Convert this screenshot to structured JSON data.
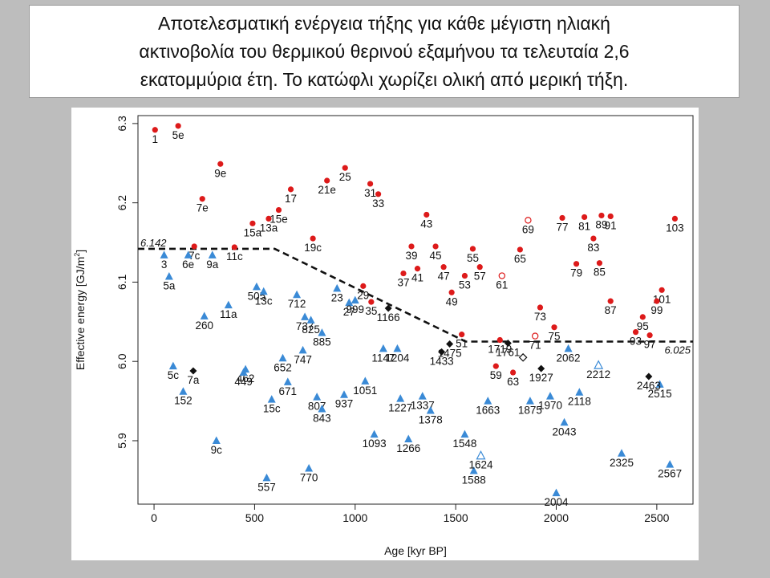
{
  "caption": {
    "lines": [
      "Αποτελεσματική ενέργεια τήξης για κάθε μέγιστη ηλιακή",
      "ακτινοβολία του θερμικού θερινού εξαμήνου τα τελευταία 2,6",
      "εκατομμύρια έτη.  Το κατώφλι χωρίζει ολική από μερική τήξη."
    ]
  },
  "colors": {
    "red": "#dd1a1a",
    "blue": "#3a8ad6",
    "black": "#111111",
    "background": "#bdbdbd",
    "plot_bg": "#ffffff"
  },
  "chart_data": {
    "type": "scatter",
    "xlabel": "Age [kyr BP]",
    "ylabel_main": "Effective energy [GJ/m",
    "ylabel_sup": "2",
    "ylabel_end": "]",
    "xlim": [
      -80,
      2680
    ],
    "ylim": [
      5.82,
      6.31
    ],
    "xticks": [
      0,
      500,
      1000,
      1500,
      2000,
      2500
    ],
    "yticks": [
      5.9,
      6.0,
      6.1,
      6.2,
      6.3
    ],
    "ytick_labels": [
      "5.9",
      "6.0",
      "6.1",
      "6.2",
      "6.3"
    ],
    "grid": false,
    "threshold": {
      "points": [
        [
          -80,
          6.142
        ],
        [
          600,
          6.142
        ],
        [
          1550,
          6.025
        ],
        [
          2680,
          6.025
        ]
      ],
      "label_left": "6.142",
      "label_right": "6.025"
    },
    "series": [
      {
        "marker": "circle-filled-red",
        "points": [
          {
            "x": 5,
            "y": 6.292,
            "label": "1"
          },
          {
            "x": 120,
            "y": 6.297,
            "label": "5e"
          },
          {
            "x": 330,
            "y": 6.249,
            "label": "9e"
          },
          {
            "x": 240,
            "y": 6.205,
            "label": "7e"
          },
          {
            "x": 680,
            "y": 6.217,
            "label": "17"
          },
          {
            "x": 860,
            "y": 6.228,
            "label": "21e"
          },
          {
            "x": 950,
            "y": 6.244,
            "label": "25"
          },
          {
            "x": 1075,
            "y": 6.224,
            "label": "31"
          },
          {
            "x": 1115,
            "y": 6.211,
            "label": "33"
          },
          {
            "x": 620,
            "y": 6.191,
            "label": "15e"
          },
          {
            "x": 570,
            "y": 6.18,
            "label": "13a"
          },
          {
            "x": 490,
            "y": 6.174,
            "label": "15a"
          },
          {
            "x": 790,
            "y": 6.155,
            "label": "19c"
          },
          {
            "x": 200,
            "y": 6.145,
            "label": "7c"
          },
          {
            "x": 400,
            "y": 6.144,
            "label": "11c"
          },
          {
            "x": 1355,
            "y": 6.185,
            "label": "43"
          },
          {
            "x": 1280,
            "y": 6.145,
            "label": "39"
          },
          {
            "x": 1400,
            "y": 6.145,
            "label": "45"
          },
          {
            "x": 1240,
            "y": 6.111,
            "label": "37"
          },
          {
            "x": 1310,
            "y": 6.117,
            "label": "41"
          },
          {
            "x": 1440,
            "y": 6.119,
            "label": "47"
          },
          {
            "x": 1585,
            "y": 6.142,
            "label": "55"
          },
          {
            "x": 1545,
            "y": 6.108,
            "label": "53"
          },
          {
            "x": 1620,
            "y": 6.119,
            "label": "57"
          },
          {
            "x": 1480,
            "y": 6.087,
            "label": "49"
          },
          {
            "x": 1040,
            "y": 6.095,
            "label": "29"
          },
          {
            "x": 1080,
            "y": 6.075,
            "label": "35"
          },
          {
            "x": 1820,
            "y": 6.141,
            "label": "65"
          },
          {
            "x": 2030,
            "y": 6.181,
            "label": "77"
          },
          {
            "x": 2140,
            "y": 6.182,
            "label": "81"
          },
          {
            "x": 2185,
            "y": 6.155,
            "label": "83"
          },
          {
            "x": 2225,
            "y": 6.184,
            "label": "89"
          },
          {
            "x": 2270,
            "y": 6.183,
            "label": "91"
          },
          {
            "x": 2590,
            "y": 6.18,
            "label": "103"
          },
          {
            "x": 2100,
            "y": 6.123,
            "label": "79"
          },
          {
            "x": 2215,
            "y": 6.124,
            "label": "85"
          },
          {
            "x": 2270,
            "y": 6.076,
            "label": "87"
          },
          {
            "x": 2525,
            "y": 6.09,
            "label": "101"
          },
          {
            "x": 2430,
            "y": 6.056,
            "label": "95"
          },
          {
            "x": 2500,
            "y": 6.076,
            "label": "99"
          },
          {
            "x": 2395,
            "y": 6.037,
            "label": "93"
          },
          {
            "x": 2465,
            "y": 6.033,
            "label": "97"
          },
          {
            "x": 1920,
            "y": 6.068,
            "label": "73"
          },
          {
            "x": 1990,
            "y": 6.043,
            "label": "75"
          },
          {
            "x": 1530,
            "y": 6.034,
            "label": "51"
          },
          {
            "x": 1720,
            "y": 6.027,
            "label": "1719"
          },
          {
            "x": 1700,
            "y": 5.994,
            "label": "59"
          },
          {
            "x": 1785,
            "y": 5.986,
            "label": "63"
          }
        ]
      },
      {
        "marker": "circle-open-red",
        "points": [
          {
            "x": 1860,
            "y": 6.178,
            "label": "69"
          },
          {
            "x": 1730,
            "y": 6.108,
            "label": "61"
          },
          {
            "x": 1895,
            "y": 6.032,
            "label": "71"
          }
        ]
      },
      {
        "marker": "triangle-filled-blue",
        "points": [
          {
            "x": 50,
            "y": 6.134,
            "label": "3"
          },
          {
            "x": 170,
            "y": 6.134,
            "label": "6e"
          },
          {
            "x": 290,
            "y": 6.134,
            "label": "9a"
          },
          {
            "x": 75,
            "y": 6.107,
            "label": "5a"
          },
          {
            "x": 370,
            "y": 6.071,
            "label": "11a"
          },
          {
            "x": 250,
            "y": 6.057,
            "label": "260"
          },
          {
            "x": 510,
            "y": 6.094,
            "label": "505"
          },
          {
            "x": 545,
            "y": 6.088,
            "label": "13c"
          },
          {
            "x": 710,
            "y": 6.084,
            "label": "712"
          },
          {
            "x": 750,
            "y": 6.056,
            "label": "737"
          },
          {
            "x": 780,
            "y": 6.052,
            "label": "825"
          },
          {
            "x": 835,
            "y": 6.036,
            "label": "885"
          },
          {
            "x": 910,
            "y": 6.092,
            "label": "23"
          },
          {
            "x": 970,
            "y": 6.074,
            "label": "27"
          },
          {
            "x": 1000,
            "y": 6.077,
            "label": "999"
          },
          {
            "x": 1140,
            "y": 6.016,
            "label": "1147"
          },
          {
            "x": 1210,
            "y": 6.016,
            "label": "1204"
          },
          {
            "x": 740,
            "y": 6.014,
            "label": "747"
          },
          {
            "x": 640,
            "y": 6.004,
            "label": "652"
          },
          {
            "x": 455,
            "y": 5.99,
            "label": "462"
          },
          {
            "x": 445,
            "y": 5.986,
            "label": "449"
          },
          {
            "x": 95,
            "y": 5.994,
            "label": "5c"
          },
          {
            "x": 145,
            "y": 5.962,
            "label": "152"
          },
          {
            "x": 665,
            "y": 5.974,
            "label": "671"
          },
          {
            "x": 585,
            "y": 5.952,
            "label": "15c"
          },
          {
            "x": 810,
            "y": 5.955,
            "label": "807"
          },
          {
            "x": 835,
            "y": 5.94,
            "label": "843"
          },
          {
            "x": 945,
            "y": 5.958,
            "label": "937"
          },
          {
            "x": 1050,
            "y": 5.975,
            "label": "1051"
          },
          {
            "x": 1225,
            "y": 5.953,
            "label": "1227"
          },
          {
            "x": 1335,
            "y": 5.956,
            "label": "1337"
          },
          {
            "x": 1375,
            "y": 5.938,
            "label": "1378"
          },
          {
            "x": 1095,
            "y": 5.908,
            "label": "1093"
          },
          {
            "x": 1265,
            "y": 5.902,
            "label": "1266"
          },
          {
            "x": 1545,
            "y": 5.908,
            "label": "1548"
          },
          {
            "x": 1660,
            "y": 5.95,
            "label": "1663"
          },
          {
            "x": 1870,
            "y": 5.95,
            "label": "1875"
          },
          {
            "x": 1970,
            "y": 5.956,
            "label": "1970"
          },
          {
            "x": 2115,
            "y": 5.961,
            "label": "2118"
          },
          {
            "x": 2040,
            "y": 5.923,
            "label": "2043"
          },
          {
            "x": 2060,
            "y": 6.016,
            "label": "2062"
          },
          {
            "x": 2515,
            "y": 5.971,
            "label": "2515"
          },
          {
            "x": 310,
            "y": 5.9,
            "label": "9c"
          },
          {
            "x": 560,
            "y": 5.853,
            "label": "557"
          },
          {
            "x": 770,
            "y": 5.865,
            "label": "770"
          },
          {
            "x": 1590,
            "y": 5.862,
            "label": "1588"
          },
          {
            "x": 2000,
            "y": 5.834,
            "label": "2004"
          },
          {
            "x": 2325,
            "y": 5.884,
            "label": "2325"
          },
          {
            "x": 2565,
            "y": 5.87,
            "label": "2567"
          }
        ]
      },
      {
        "marker": "triangle-open-blue",
        "points": [
          {
            "x": 1625,
            "y": 5.881,
            "label": "1624"
          },
          {
            "x": 2210,
            "y": 5.995,
            "label": "2212"
          }
        ]
      },
      {
        "marker": "diamond-filled-black",
        "points": [
          {
            "x": 195,
            "y": 5.988,
            "label": "7a"
          },
          {
            "x": 1165,
            "y": 6.067,
            "label": "1166"
          },
          {
            "x": 1430,
            "y": 6.012,
            "label": "1433"
          },
          {
            "x": 1470,
            "y": 6.022,
            "label": "1475"
          },
          {
            "x": 1760,
            "y": 6.023,
            "label": "1761"
          },
          {
            "x": 1925,
            "y": 5.991,
            "label": "1927"
          },
          {
            "x": 2460,
            "y": 5.981,
            "label": "2463"
          }
        ]
      },
      {
        "marker": "diamond-open-black",
        "points": [
          {
            "x": 1835,
            "y": 6.005,
            "label": ""
          }
        ]
      }
    ]
  }
}
